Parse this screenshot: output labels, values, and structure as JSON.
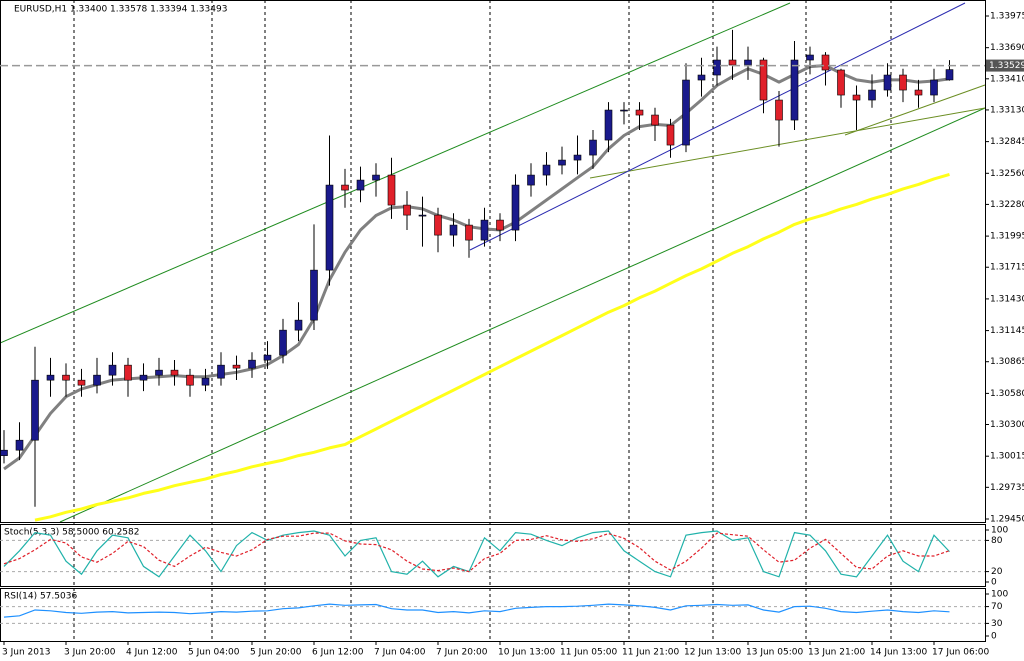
{
  "chart_data": [
    {
      "type": "candlestick",
      "title": "EURUSD,H1  1.33400 1.33578 1.33394 1.33493",
      "categories": [
        "3 Jun 2013",
        null,
        null,
        null,
        "3 Jun 20:00",
        null,
        null,
        null,
        "4 Jun 12:00",
        null,
        null,
        null,
        "5 Jun 04:00",
        null,
        null,
        null,
        "5 Jun 20:00",
        null,
        null,
        null,
        "6 Jun 12:00",
        null,
        null,
        null,
        "7 Jun 04:00",
        null,
        null,
        null,
        "7 Jun 20:00",
        null,
        null,
        null,
        "10 Jun 13:00",
        null,
        null,
        null,
        "11 Jun 05:00",
        null,
        null,
        null,
        "11 Jun 21:00",
        null,
        null,
        null,
        "12 Jun 13:00",
        null,
        null,
        null,
        "13 Jun 05:00",
        null,
        null,
        null,
        "13 Jun 21:00",
        null,
        null,
        null,
        "14 Jun 13:00",
        null,
        null,
        null,
        "17 Jun 06:00",
        null
      ],
      "open": [
        1.3002,
        1.30069,
        1.30159,
        1.30699,
        1.30744,
        1.30699,
        1.30654,
        1.30744,
        1.30834,
        1.30699,
        1.30744,
        1.30789,
        1.30744,
        1.30654,
        1.30717,
        1.30834,
        1.30807,
        1.30879,
        1.30924,
        1.31149,
        1.31239,
        1.31689,
        1.32454,
        1.32409,
        1.32499,
        1.32544,
        1.32274,
        1.32184,
        1.32184,
        1.32004,
        1.32094,
        1.31959,
        1.32139,
        1.32049,
        1.32454,
        1.32544,
        1.32634,
        1.32679,
        1.32724,
        1.32859,
        1.33129,
        1.33129,
        1.33084,
        1.32994,
        1.32814,
        1.33399,
        1.33444,
        1.33579,
        1.33534,
        1.33579,
        1.33219,
        1.33039,
        1.33579,
        1.33624,
        1.33489,
        1.33264,
        1.33219,
        1.33309,
        1.33444,
        1.33309,
        1.33264,
        1.334
      ],
      "high": [
        1.3025,
        1.3032,
        1.31,
        1.309,
        1.3085,
        1.308,
        1.309,
        1.3095,
        1.309,
        1.3085,
        1.309,
        1.3088,
        1.308,
        1.308,
        1.3095,
        1.3092,
        1.3095,
        1.3105,
        1.3125,
        1.314,
        1.321,
        1.329,
        1.326,
        1.3262,
        1.3265,
        1.327,
        1.324,
        1.3235,
        1.3225,
        1.322,
        1.3215,
        1.3225,
        1.322,
        1.3255,
        1.3265,
        1.3275,
        1.328,
        1.329,
        1.3295,
        1.332,
        1.332,
        1.332,
        1.3315,
        1.3305,
        1.3355,
        1.336,
        1.337,
        1.3385,
        1.337,
        1.336,
        1.333,
        1.3375,
        1.337,
        1.3365,
        1.335,
        1.3335,
        1.3345,
        1.3355,
        1.335,
        1.334,
        1.335,
        1.33578
      ],
      "low": [
        1.2995,
        1.2998,
        1.2956,
        1.3055,
        1.3055,
        1.3055,
        1.3058,
        1.3065,
        1.3055,
        1.306,
        1.3065,
        1.3065,
        1.3055,
        1.306,
        1.3065,
        1.307,
        1.3072,
        1.308,
        1.3085,
        1.3105,
        1.3115,
        1.3155,
        1.3225,
        1.323,
        1.3235,
        1.3215,
        1.3205,
        1.319,
        1.3185,
        1.319,
        1.318,
        1.319,
        1.3195,
        1.3195,
        1.3235,
        1.3245,
        1.3255,
        1.3255,
        1.326,
        1.3275,
        1.33,
        1.3295,
        1.3285,
        1.327,
        1.3275,
        1.3325,
        1.3335,
        1.334,
        1.334,
        1.331,
        1.328,
        1.3295,
        1.3345,
        1.3335,
        1.3315,
        1.3295,
        1.3315,
        1.3325,
        1.332,
        1.3315,
        1.332,
        1.33394
      ],
      "close": [
        1.30069,
        1.30159,
        1.30699,
        1.30744,
        1.30699,
        1.30654,
        1.30744,
        1.30834,
        1.30699,
        1.30744,
        1.30789,
        1.30744,
        1.30654,
        1.30717,
        1.30834,
        1.30807,
        1.30879,
        1.30924,
        1.31149,
        1.31239,
        1.31689,
        1.32454,
        1.32409,
        1.32499,
        1.32544,
        1.32274,
        1.32184,
        1.32184,
        1.32004,
        1.32094,
        1.31959,
        1.32139,
        1.32049,
        1.32454,
        1.32544,
        1.32634,
        1.32679,
        1.32724,
        1.32859,
        1.33129,
        1.33129,
        1.33084,
        1.32994,
        1.32814,
        1.33399,
        1.33444,
        1.33579,
        1.33534,
        1.33579,
        1.33219,
        1.33039,
        1.33579,
        1.33624,
        1.33489,
        1.33264,
        1.33219,
        1.33309,
        1.33444,
        1.33309,
        1.33264,
        1.33399,
        1.33493
      ],
      "up_color": "#1a1a8c",
      "down_color": "#e0202a",
      "overlays": [
        {
          "color": "#808080",
          "values": [
            1.299,
            1.3,
            1.302,
            1.304,
            1.3055,
            1.3062,
            1.3066,
            1.307,
            1.3071,
            1.3072,
            1.3073,
            1.3074,
            1.3073,
            1.3073,
            1.3075,
            1.3077,
            1.308,
            1.3084,
            1.3092,
            1.3102,
            1.3125,
            1.316,
            1.3185,
            1.3205,
            1.3218,
            1.3225,
            1.3226,
            1.3224,
            1.3218,
            1.3214,
            1.3208,
            1.3206,
            1.3205,
            1.3212,
            1.3222,
            1.3232,
            1.3242,
            1.3252,
            1.3262,
            1.3278,
            1.329,
            1.3298,
            1.33,
            1.3299,
            1.331,
            1.3322,
            1.3335,
            1.3343,
            1.335,
            1.3345,
            1.3338,
            1.3345,
            1.3352,
            1.3353,
            1.3346,
            1.334,
            1.3338,
            1.334,
            1.334,
            1.3338,
            1.3339,
            1.3341
          ]
        },
        {
          "color": "#ffff1a",
          "values": [
            null,
            null,
            1.2944,
            1.2947,
            1.2951,
            1.2954,
            1.2958,
            1.2961,
            1.2964,
            1.2968,
            1.2971,
            1.2975,
            1.2978,
            1.2981,
            1.2985,
            1.2988,
            1.2992,
            1.2995,
            1.2998,
            1.3002,
            1.3005,
            1.3009,
            1.3012,
            1.3019,
            1.3026,
            1.3033,
            1.304,
            1.3047,
            1.3054,
            1.3061,
            1.3068,
            1.3075,
            1.3082,
            1.3089,
            1.3096,
            1.3103,
            1.311,
            1.3117,
            1.3124,
            1.3131,
            1.3137,
            1.3144,
            1.315,
            1.3157,
            1.3164,
            1.317,
            1.3177,
            1.3184,
            1.319,
            1.3197,
            1.3203,
            1.321,
            1.3215,
            1.3219,
            1.3224,
            1.3228,
            1.3233,
            1.3237,
            1.3242,
            1.3246,
            1.3251,
            1.3255
          ]
        }
      ],
      "current_price": 1.33529,
      "ylim": [
        1.29423,
        1.34092
      ],
      "yticks": [
        1.33975,
        {
          "value": 1.3369,
          "label": "1.33690"
        },
        {
          "value": 1.3341,
          "label": "1.33410"
        },
        {
          "value": 1.3313,
          "label": "1.33130"
        },
        1.32845,
        {
          "value": 1.3256,
          "label": "1.32560"
        },
        {
          "value": 1.3228,
          "label": "1.32280"
        },
        1.31995,
        1.31715,
        {
          "value": 1.3143,
          "label": "1.31430"
        },
        1.31145,
        1.30865,
        {
          "value": 1.3058,
          "label": "1.30580"
        },
        {
          "value": 1.303,
          "label": "1.30300"
        },
        1.30015,
        1.29735,
        {
          "value": 1.2945,
          "label": "1.29450"
        }
      ]
    },
    {
      "type": "line",
      "title": "Stoch(5,3,3) 58.5000 60.2582",
      "series": [
        {
          "color": "#20b2aa",
          "values": [
            30,
            60,
            95,
            90,
            40,
            15,
            60,
            90,
            85,
            30,
            10,
            50,
            90,
            60,
            20,
            70,
            95,
            80,
            90,
            95,
            98,
            90,
            50,
            80,
            85,
            20,
            15,
            40,
            10,
            30,
            20,
            85,
            60,
            95,
            92,
            80,
            70,
            85,
            95,
            98,
            60,
            40,
            20,
            10,
            90,
            95,
            98,
            80,
            85,
            20,
            10,
            95,
            90,
            60,
            15,
            10,
            50,
            90,
            40,
            20,
            90,
            58.5
          ]
        },
        {
          "color": "#e0202a",
          "dashed": true,
          "values": [
            35,
            45,
            62,
            82,
            75,
            48,
            38,
            55,
            78,
            68,
            42,
            30,
            50,
            67,
            57,
            50,
            62,
            82,
            88,
            88,
            94,
            94,
            79,
            73,
            72,
            62,
            40,
            25,
            22,
            27,
            20,
            45,
            55,
            80,
            82,
            89,
            81,
            78,
            83,
            93,
            84,
            66,
            40,
            23,
            40,
            65,
            94,
            91,
            88,
            62,
            38,
            42,
            65,
            82,
            55,
            28,
            25,
            50,
            60,
            50,
            50,
            60.2582
          ]
        }
      ],
      "ylim": [
        0,
        100
      ],
      "yticks": [
        100,
        80,
        20,
        0
      ]
    },
    {
      "type": "line",
      "title": "RSI(14) 57.5036",
      "series": [
        {
          "color": "#1e90ff",
          "values": [
            45,
            48,
            62,
            60,
            56,
            54,
            57,
            58,
            55,
            56,
            57,
            56,
            53,
            55,
            58,
            57,
            59,
            60,
            65,
            67,
            72,
            76,
            73,
            74,
            75,
            65,
            62,
            62,
            56,
            58,
            55,
            60,
            58,
            66,
            68,
            70,
            70,
            71,
            73,
            76,
            74,
            72,
            68,
            62,
            72,
            73,
            75,
            73,
            74,
            62,
            57,
            70,
            71,
            66,
            58,
            56,
            59,
            62,
            58,
            56,
            60,
            57.5036
          ]
        }
      ],
      "ylim": [
        0,
        100
      ],
      "yticks": [
        100,
        70,
        30,
        0
      ]
    }
  ]
}
